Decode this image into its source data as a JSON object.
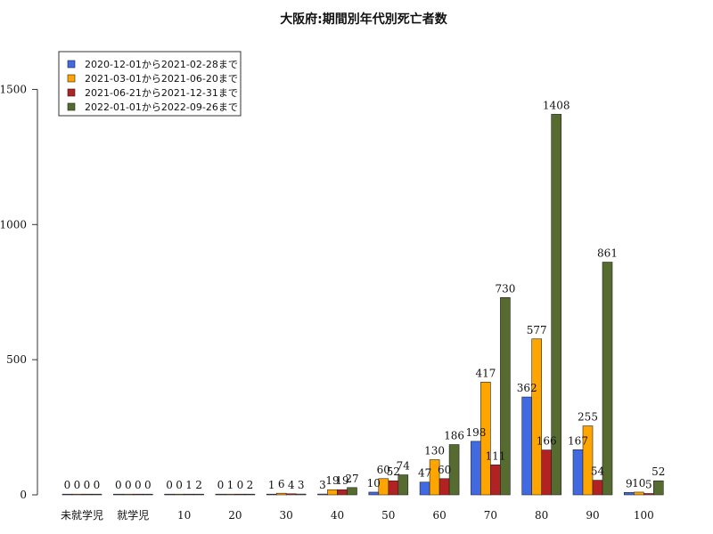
{
  "chart_data": {
    "type": "bar",
    "title": "大阪府:期間別年代別死亡者数",
    "xlabel": "",
    "ylabel": "",
    "ylim": [
      0,
      1650
    ],
    "yticks": [
      0,
      500,
      1000,
      1500
    ],
    "categories": [
      "未就学児",
      "就学児",
      "10",
      "20",
      "30",
      "40",
      "50",
      "60",
      "70",
      "80",
      "90",
      "100"
    ],
    "legend_position": "top-left",
    "series": [
      {
        "name": "2020-12-01から2021-02-28まで",
        "color": "#4169e1",
        "values": [
          0,
          0,
          0,
          0,
          1,
          3,
          10,
          47,
          198,
          362,
          167,
          9
        ]
      },
      {
        "name": "2021-03-01から2021-06-20まで",
        "color": "#ffa500",
        "values": [
          0,
          0,
          0,
          1,
          6,
          19,
          60,
          130,
          417,
          577,
          255,
          10
        ]
      },
      {
        "name": "2021-06-21から2021-12-31まで",
        "color": "#b22222",
        "values": [
          0,
          0,
          1,
          0,
          4,
          19,
          52,
          60,
          111,
          166,
          54,
          5
        ]
      },
      {
        "name": "2022-01-01から2022-09-26まで",
        "color": "#556b2f",
        "values": [
          0,
          0,
          2,
          2,
          3,
          27,
          74,
          186,
          730,
          1408,
          861,
          52
        ]
      }
    ]
  }
}
